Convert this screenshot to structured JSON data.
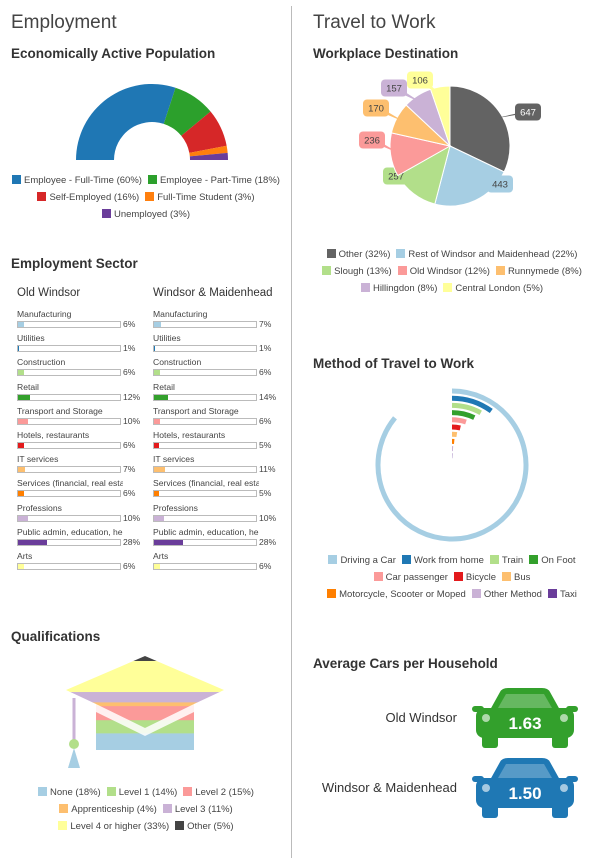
{
  "employment": {
    "title": "Employment",
    "active_population": {
      "title": "Economically Active Population",
      "chart_data": {
        "type": "pie",
        "variant": "half-donut",
        "title": "Economically Active Population",
        "series": [
          {
            "name": "Employee - Full-Time (60%)",
            "value": 60,
            "color": "#1f77b4"
          },
          {
            "name": "Employee - Part-Time (18%)",
            "value": 18,
            "color": "#2ca02c"
          },
          {
            "name": "Self-Employed (16%)",
            "value": 16,
            "color": "#d62728"
          },
          {
            "name": "Full-Time Student (3%)",
            "value": 3,
            "color": "#ff7f0e"
          },
          {
            "name": "Unemployed (3%)",
            "value": 3,
            "color": "#6a3d9a"
          }
        ]
      }
    },
    "sector": {
      "title": "Employment Sector",
      "chart_data": {
        "type": "bar",
        "orientation": "horizontal",
        "title": "Employment Sector",
        "categories": [
          "Manufacturing",
          "Utilities",
          "Construction",
          "Retail",
          "Transport and Storage",
          "Hotels, restaurants",
          "IT services",
          "Services (financial, real estate..",
          "Professions",
          "Public admin, education, health",
          "Arts"
        ],
        "colors": [
          "#a6cee3",
          "#1f78b4",
          "#b2df8a",
          "#33a02c",
          "#fb9a99",
          "#e31a1c",
          "#fdbf6f",
          "#ff7f00",
          "#cab2d6",
          "#6a3d9a",
          "#ffff99"
        ],
        "xlim": [
          0,
          100
        ],
        "series": [
          {
            "name": "Old Windsor",
            "values": [
              6,
              1,
              6,
              12,
              10,
              6,
              7,
              6,
              10,
              28,
              6
            ]
          },
          {
            "name": "Windsor & Maidenhead",
            "values": [
              7,
              1,
              6,
              14,
              6,
              5,
              11,
              5,
              10,
              28,
              6
            ]
          }
        ]
      }
    },
    "qualifications": {
      "title": "Qualifications",
      "chart_data": {
        "type": "bar",
        "variant": "pictogram-stacked",
        "title": "Qualifications",
        "series": [
          {
            "name": "None (18%)",
            "value": 18,
            "color": "#a6cee3"
          },
          {
            "name": "Level 1 (14%)",
            "value": 14,
            "color": "#b2df8a"
          },
          {
            "name": "Level 2 (15%)",
            "value": 15,
            "color": "#fb9a99"
          },
          {
            "name": "Apprenticeship (4%)",
            "value": 4,
            "color": "#fdbf6f"
          },
          {
            "name": "Level 3 (11%)",
            "value": 11,
            "color": "#cab2d6"
          },
          {
            "name": "Level 4 or higher (33%)",
            "value": 33,
            "color": "#ffff99"
          },
          {
            "name": "Other (5%)",
            "value": 5,
            "color": "#444444"
          }
        ]
      }
    }
  },
  "travel": {
    "title": "Travel to Work",
    "destination": {
      "title": "Workplace Destination",
      "chart_data": {
        "type": "pie",
        "title": "Workplace Destination",
        "series": [
          {
            "name": "Other (32%)",
            "value": 647,
            "color": "#636363"
          },
          {
            "name": "Rest of Windsor and Maidenhead (22%)",
            "value": 443,
            "color": "#a6cee3"
          },
          {
            "name": "Slough (13%)",
            "value": 257,
            "color": "#b2df8a"
          },
          {
            "name": "Old Windsor (12%)",
            "value": 236,
            "color": "#fb9a99"
          },
          {
            "name": "Runnymede (8%)",
            "value": 170,
            "color": "#fdbf6f"
          },
          {
            "name": "Hillingdon (8%)",
            "value": 157,
            "color": "#cab2d6"
          },
          {
            "name": "Central London (5%)",
            "value": 106,
            "color": "#ffff99"
          }
        ]
      }
    },
    "method": {
      "title": "Method of Travel to Work",
      "chart_data": {
        "type": "bar",
        "variant": "radial",
        "title": "Method of Travel to Work",
        "series": [
          {
            "name": "Driving a Car",
            "value": 86,
            "color": "#a6cee3"
          },
          {
            "name": "Work from home",
            "value": 10,
            "color": "#1f78b4"
          },
          {
            "name": "Train",
            "value": 8,
            "color": "#b2df8a"
          },
          {
            "name": "On Foot",
            "value": 7,
            "color": "#33a02c"
          },
          {
            "name": "Car passenger",
            "value": 5,
            "color": "#fb9a99"
          },
          {
            "name": "Bicycle",
            "value": 3.5,
            "color": "#e31a1c"
          },
          {
            "name": "Bus",
            "value": 2.5,
            "color": "#fdbf6f"
          },
          {
            "name": "Motorcycle, Scooter or Moped",
            "value": 1.5,
            "color": "#ff7f00"
          },
          {
            "name": "Other Method",
            "value": 1,
            "color": "#cab2d6"
          },
          {
            "name": "Taxi",
            "value": 0.5,
            "color": "#6a3d9a"
          }
        ]
      }
    },
    "cars": {
      "title": "Average Cars per Household",
      "items": [
        {
          "label": "Old Windsor",
          "value": "1.63",
          "color": "#33a02c"
        },
        {
          "label": "Windsor & Maidenhead",
          "value": "1.50",
          "color": "#1f78b4"
        }
      ]
    }
  }
}
